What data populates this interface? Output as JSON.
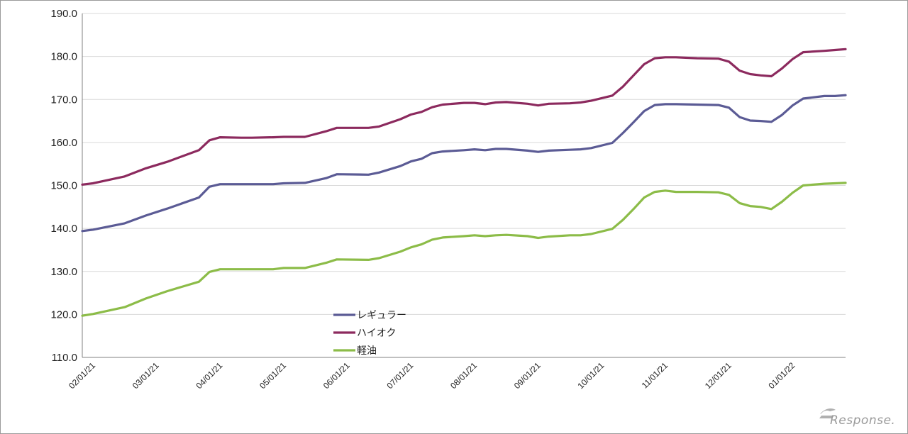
{
  "chart_data": {
    "type": "line",
    "title": "",
    "xlabel": "",
    "ylabel": "",
    "ylim": [
      110,
      190
    ],
    "yticks": [
      "110.0",
      "120.0",
      "130.0",
      "140.0",
      "150.0",
      "160.0",
      "170.0",
      "180.0",
      "190.0"
    ],
    "xtick_labels": [
      "02/01/21",
      "03/01/21",
      "04/01/21",
      "05/01/21",
      "06/01/21",
      "07/01/21",
      "08/01/21",
      "09/01/21",
      "10/01/21",
      "11/01/21",
      "12/01/21",
      "01/01/22"
    ],
    "x": [
      0,
      0.25,
      1,
      1.5,
      2,
      2.75,
      3,
      3.25,
      3.75,
      4,
      4.5,
      4.75,
      5.25,
      5.75,
      6,
      6.75,
      7,
      7.5,
      7.75,
      8,
      8.25,
      8.5,
      9,
      9.25,
      9.5,
      9.75,
      10,
      10.5,
      10.75,
      11,
      11.5,
      11.75,
      12,
      12.5,
      12.75,
      13,
      13.25,
      13.5,
      13.75,
      14,
      14.5,
      15,
      15.25,
      15.5,
      15.75,
      16,
      16.25,
      16.5,
      16.75,
      17,
      17.5,
      17.75,
      18
    ],
    "series": [
      {
        "name": "レギュラー",
        "color": "#5b5b95",
        "values": [
          139.4,
          139.7,
          141.2,
          143.0,
          144.6,
          147.2,
          149.7,
          150.3,
          150.3,
          150.3,
          150.3,
          150.5,
          150.6,
          151.7,
          152.6,
          152.5,
          153.0,
          154.5,
          155.6,
          156.2,
          157.5,
          157.9,
          158.2,
          158.4,
          158.2,
          158.5,
          158.5,
          158.1,
          157.8,
          158.1,
          158.3,
          158.4,
          158.7,
          159.9,
          162.2,
          164.7,
          167.3,
          168.7,
          168.9,
          168.9,
          168.8,
          168.7,
          168.1,
          165.9,
          165.1,
          165.0,
          164.8,
          166.4,
          168.6,
          170.2,
          170.8,
          170.8,
          171.0
        ]
      },
      {
        "name": "ハイオク",
        "color": "#8c2a5e",
        "values": [
          150.2,
          150.5,
          152.1,
          154.0,
          155.5,
          158.2,
          160.5,
          161.2,
          161.1,
          161.1,
          161.2,
          161.3,
          161.3,
          162.6,
          163.4,
          163.4,
          163.7,
          165.4,
          166.5,
          167.1,
          168.2,
          168.8,
          169.2,
          169.2,
          168.9,
          169.3,
          169.4,
          169.0,
          168.6,
          169.0,
          169.1,
          169.3,
          169.7,
          170.9,
          173.0,
          175.6,
          178.2,
          179.6,
          179.8,
          179.8,
          179.6,
          179.5,
          178.8,
          176.7,
          175.9,
          175.6,
          175.4,
          177.2,
          179.4,
          181.0,
          181.3,
          181.5,
          181.7
        ]
      },
      {
        "name": "軽油",
        "color": "#8cbc48",
        "values": [
          119.7,
          120.1,
          121.7,
          123.7,
          125.4,
          127.6,
          129.9,
          130.5,
          130.5,
          130.5,
          130.5,
          130.8,
          130.8,
          132.0,
          132.8,
          132.7,
          133.1,
          134.6,
          135.6,
          136.3,
          137.4,
          137.9,
          138.2,
          138.4,
          138.2,
          138.4,
          138.5,
          138.2,
          137.8,
          138.1,
          138.4,
          138.4,
          138.7,
          139.9,
          142.0,
          144.5,
          147.2,
          148.5,
          148.8,
          148.5,
          148.5,
          148.4,
          147.8,
          145.9,
          145.2,
          145.0,
          144.5,
          146.2,
          148.3,
          150.0,
          150.4,
          150.5,
          150.6
        ]
      }
    ],
    "grid": true,
    "legend_position": "center-bottom"
  },
  "watermark": {
    "text": "Response."
  }
}
